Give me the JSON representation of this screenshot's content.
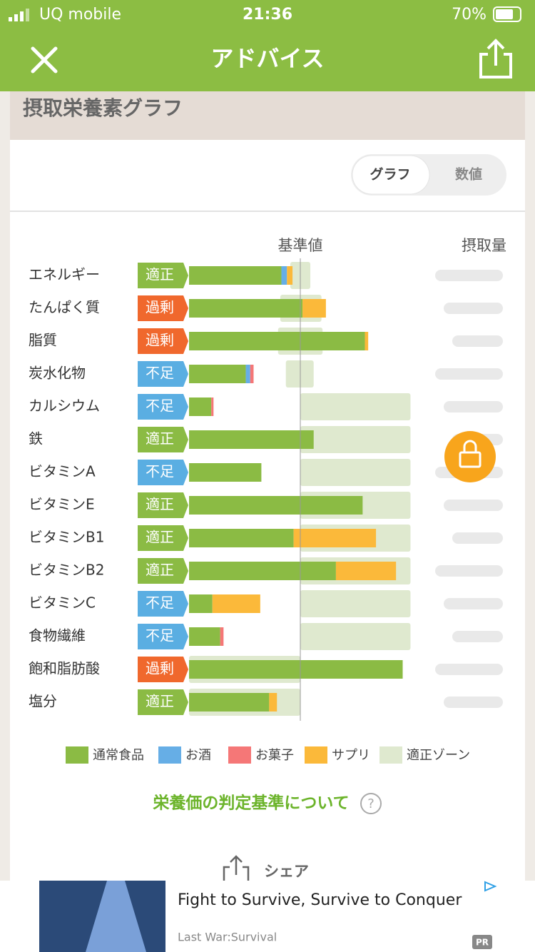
{
  "status_bar": {
    "carrier": "UQ mobile",
    "time": "21:36",
    "battery": "70%"
  },
  "header": {
    "title": "アドバイス"
  },
  "section_title": "摂取栄養素グラフ",
  "toggle": {
    "options": [
      "グラフ",
      "数値"
    ],
    "selected": 0
  },
  "chart_data": {
    "type": "stacked-bar-horizontal",
    "reference_label": "基準値",
    "amount_label": "摂取量",
    "categories": [
      "エネルギー",
      "たんぱく質",
      "脂質",
      "炭水化物",
      "カルシウム",
      "鉄",
      "ビタミンA",
      "ビタミンE",
      "ビタミンB1",
      "ビタミンB2",
      "ビタミンC",
      "食物繊維",
      "飽和脂肪酸",
      "塩分"
    ],
    "statuses": [
      {
        "label": "適正",
        "color": "#8bbb44"
      },
      {
        "label": "過剰",
        "color": "#f0682d"
      },
      {
        "label": "過剰",
        "color": "#f0682d"
      },
      {
        "label": "不足",
        "color": "#5aaee2"
      },
      {
        "label": "不足",
        "color": "#5aaee2"
      },
      {
        "label": "適正",
        "color": "#8bbb44"
      },
      {
        "label": "不足",
        "color": "#5aaee2"
      },
      {
        "label": "適正",
        "color": "#8bbb44"
      },
      {
        "label": "適正",
        "color": "#8bbb44"
      },
      {
        "label": "適正",
        "color": "#8bbb44"
      },
      {
        "label": "不足",
        "color": "#5aaee2"
      },
      {
        "label": "不足",
        "color": "#5aaee2"
      },
      {
        "label": "過剰",
        "color": "#f0682d"
      },
      {
        "label": "適正",
        "color": "#8bbb44"
      }
    ],
    "series": [
      {
        "name": "通常食品",
        "color": "#8bbb44",
        "values": [
          83,
          102,
          158,
          51,
          20,
          112,
          65,
          156,
          94,
          132,
          21,
          28,
          192,
          72
        ]
      },
      {
        "name": "お酒",
        "color": "#66aee6",
        "values": [
          5,
          0,
          0,
          4,
          0,
          0,
          0,
          0,
          0,
          0,
          0,
          0,
          0,
          0
        ]
      },
      {
        "name": "お菓子",
        "color": "#f57777",
        "values": [
          0,
          0,
          0,
          3,
          2,
          0,
          0,
          0,
          0,
          0,
          0,
          3,
          0,
          0
        ]
      },
      {
        "name": "サプリ",
        "color": "#fbb93a",
        "values": [
          5,
          21,
          3,
          0,
          0,
          0,
          0,
          0,
          74,
          54,
          43,
          0,
          0,
          7
        ]
      }
    ],
    "zones": {
      "name": "適正ゾーン",
      "color": "#dfe9cf",
      "ranges": [
        [
          91,
          109
        ],
        [
          82,
          119
        ],
        [
          80,
          120
        ],
        [
          87,
          112
        ],
        [
          100,
          199
        ],
        [
          100,
          199
        ],
        [
          100,
          199
        ],
        [
          100,
          199
        ],
        [
          100,
          199
        ],
        [
          100,
          199
        ],
        [
          100,
          199
        ],
        [
          100,
          199
        ],
        [
          0,
          100
        ],
        [
          0,
          100
        ]
      ]
    },
    "reference_value": 100,
    "xlim": [
      0,
      200
    ]
  },
  "link_text": "栄養価の判定基準について",
  "share": "シェア",
  "ad": {
    "title": "Fight to Survive, Survive to Conquer",
    "advertiser": "Last War:Survival",
    "badge": "PR"
  }
}
